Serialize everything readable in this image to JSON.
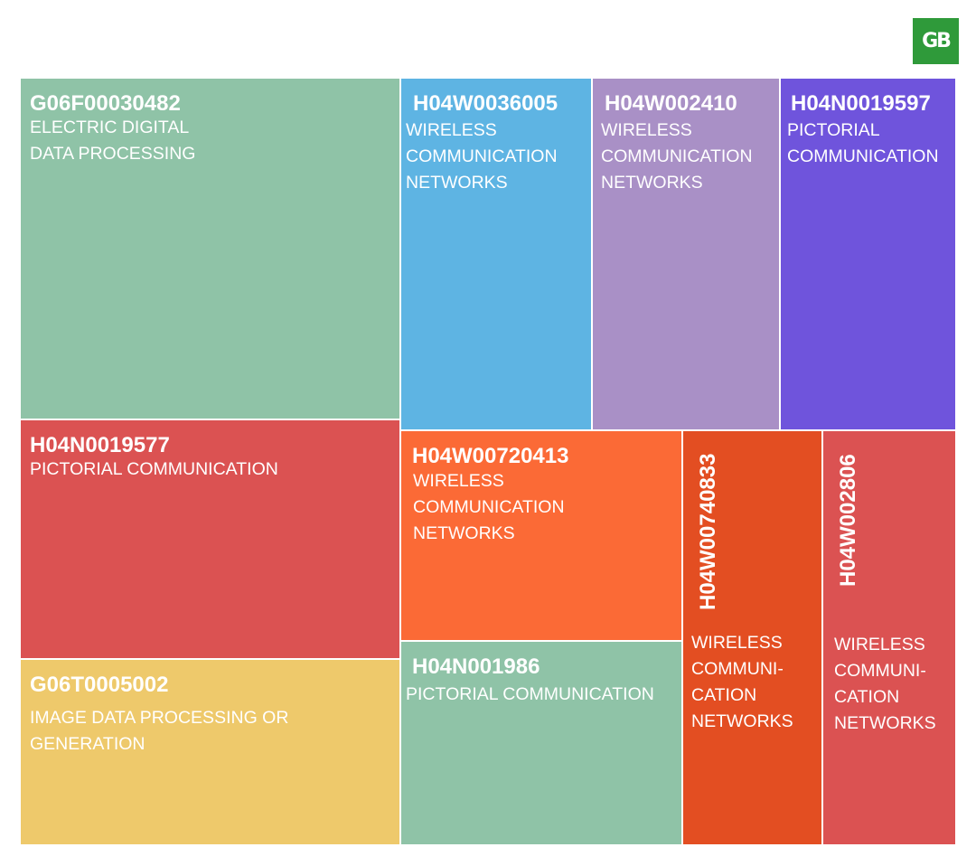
{
  "logo": {
    "text": "GB"
  },
  "chart_data": {
    "type": "treemap",
    "tiles": [
      {
        "code": "G06F00030482",
        "label": "ELECTRIC DIGITAL\nDATA PROCESSING",
        "color": "#8fc3a7"
      },
      {
        "code": "H04N0019577",
        "label": "PICTORIAL COMMUNICATION",
        "color": "#db5252"
      },
      {
        "code": "G06T0005002",
        "label": "IMAGE DATA PROCESSING OR\nGENERATION",
        "color": "#eec96b"
      },
      {
        "code": "H04W0036005",
        "label": "WIRELESS\nCOMMUNICATION\nNETWORKS",
        "color": "#5eb4e3"
      },
      {
        "code": "H04W002410",
        "label": "WIRELESS\nCOMMUNICATION\nNETWORKS",
        "color": "#a990c6"
      },
      {
        "code": "H04N0019597",
        "label": "PICTORIAL\nCOMMUNICATION",
        "color": "#6f54dc"
      },
      {
        "code": "H04W00720413",
        "label": "WIRELESS\nCOMMUNICATION\nNETWORKS",
        "color": "#fb6a36"
      },
      {
        "code": "H04N001986",
        "label": "PICTORIAL COMMUNICATION",
        "color": "#8fc3a7"
      },
      {
        "code": "H04W00740833",
        "label": "WIRELESS\nCOMMUNI-\nCATION\nNETWORKS",
        "color": "#e34e22"
      },
      {
        "code": "H04W002806",
        "label": "WIRELESS\nCOMMUNI-\nCATION\nNETWORKS",
        "color": "#db5252"
      }
    ]
  }
}
